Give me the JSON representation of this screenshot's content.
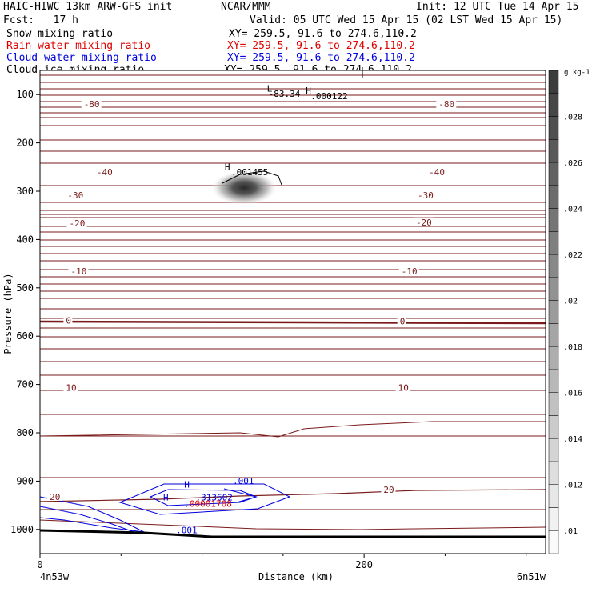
{
  "header": {
    "title_left": "HAIC-HIWC 13km ARW-GFS init",
    "org": "NCAR/MMM",
    "init": "Init: 12 UTC Tue 14 Apr 15",
    "fcst": "Fcst:   17 h",
    "valid": "Valid: 05 UTC Wed 15 Apr 15 (02 LST Wed 15 Apr 15)",
    "fields": [
      {
        "name": "Snow mixing ratio",
        "xy": "XY= 259.5, 91.6 to 274.6,110.2",
        "color": "#000000"
      },
      {
        "name": "Rain water mixing ratio",
        "xy": "XY= 259.5, 91.6 to 274.6,110.2",
        "color": "#e00000"
      },
      {
        "name": "Cloud water mixing ratio",
        "xy": "XY= 259.5, 91.6 to 274.6,110.2",
        "color": "#0000dd"
      },
      {
        "name": "Cloud ice mixing ratio",
        "xy": "XY= 259.5, 91.6 to 274.6,110.2",
        "color": "#000000"
      }
    ]
  },
  "chart_data": {
    "type": "contour cross-section",
    "xlabel": "Distance (km)",
    "ylabel": "Pressure (hPa)",
    "x_ticks": [
      "0",
      "200"
    ],
    "x_tick_values": [
      0,
      200
    ],
    "y_ticks": [
      "100",
      "200",
      "300",
      "400",
      "500",
      "600",
      "700",
      "800",
      "900",
      "1000"
    ],
    "y_tick_values": [
      100,
      200,
      300,
      400,
      500,
      600,
      700,
      800,
      900,
      1000
    ],
    "xlim": [
      0,
      312
    ],
    "ylim": [
      50,
      1050
    ],
    "x_endpoints": {
      "left": "4n53w",
      "right": "6n51w"
    },
    "colorbar": {
      "unit": "g kg-1",
      "ticks": [
        ".01",
        ".012",
        ".014",
        ".016",
        ".018",
        ".02",
        ".022",
        ".024",
        ".026",
        ".028"
      ],
      "tick_values": [
        0.01,
        0.012,
        0.014,
        0.016,
        0.018,
        0.02,
        0.022,
        0.024,
        0.026,
        0.028
      ],
      "range": [
        0.009,
        0.03
      ]
    },
    "temperature_contour_labels": [
      {
        "text": "-80",
        "x": 27,
        "p": 121
      },
      {
        "text": "-80",
        "x": 246,
        "p": 121
      },
      {
        "text": "-40",
        "x": 35,
        "p": 262
      },
      {
        "text": "-40",
        "x": 240,
        "p": 262
      },
      {
        "text": "-30",
        "x": 17,
        "p": 310
      },
      {
        "text": "-30",
        "x": 233,
        "p": 310
      },
      {
        "text": "-20",
        "x": 18,
        "p": 368
      },
      {
        "text": "-20",
        "x": 232,
        "p": 366
      },
      {
        "text": "-10",
        "x": 19,
        "p": 467
      },
      {
        "text": "-10",
        "x": 223,
        "p": 467
      },
      {
        "text": "0",
        "x": 16,
        "p": 569
      },
      {
        "text": "0",
        "x": 222,
        "p": 571
      },
      {
        "text": "10",
        "x": 16,
        "p": 708
      },
      {
        "text": "10",
        "x": 221,
        "p": 708
      },
      {
        "text": "20",
        "x": 6,
        "p": 934
      },
      {
        "text": "20",
        "x": 212,
        "p": 919
      }
    ],
    "extrema_labels": [
      {
        "text": "L",
        "x": 140,
        "p": 94,
        "color": "#000000"
      },
      {
        "text": "-83.34",
        "x": 141,
        "p": 105,
        "color": "#000000"
      },
      {
        "text": "H",
        "x": 164,
        "p": 98,
        "color": "#000000"
      },
      {
        "text": ".000122",
        "x": 167,
        "p": 110,
        "color": "#000000"
      },
      {
        "text": "H",
        "x": 114,
        "p": 256,
        "color": "#000000"
      },
      {
        "text": ".001455",
        "x": 118,
        "p": 267,
        "color": "#000000"
      },
      {
        "text": "H",
        "x": 89,
        "p": 913,
        "color": "#0000dd"
      },
      {
        "text": ".001",
        "x": 119,
        "p": 906,
        "color": "#0000dd"
      },
      {
        "text": "H",
        "x": 76,
        "p": 940,
        "color": "#0000dd"
      },
      {
        "text": ".313602",
        "x": 96,
        "p": 940,
        "color": "#0000dd"
      },
      {
        "text": ".00001708",
        "x": 89,
        "p": 953,
        "color": "#e00000"
      },
      {
        "text": ".001",
        "x": 84,
        "p": 1008,
        "color": "#0000dd"
      }
    ],
    "snow_max": {
      "x": 126,
      "p": 293,
      "value": 0.029
    },
    "grid": false
  }
}
